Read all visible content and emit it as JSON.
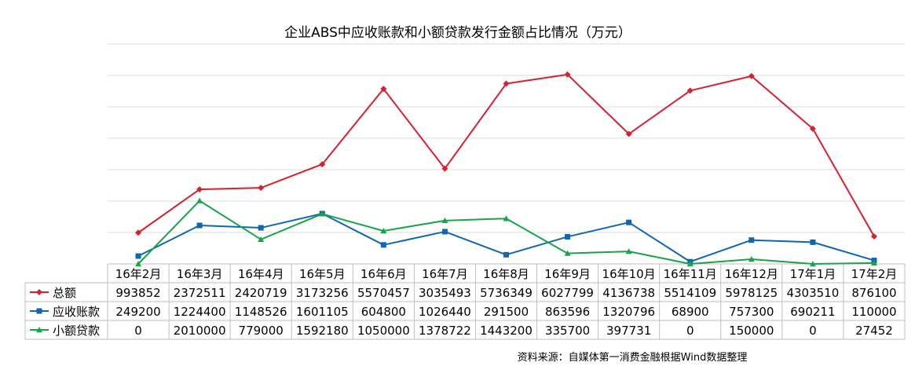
{
  "chart_data": {
    "type": "line",
    "title": "企业ABS中应收账款和小额贷款发行金额占比情况（万元）",
    "categories": [
      "16年2月",
      "16年3月",
      "16年4月",
      "16年5月",
      "16年6月",
      "16年7月",
      "16年8月",
      "16年9月",
      "16年10月",
      "16年11月",
      "16年12月",
      "17年1月",
      "17年2月"
    ],
    "ylim": [
      0,
      7000000
    ],
    "grid": true,
    "legend": "data-table-left",
    "series": [
      {
        "name": "总额",
        "color": "#d9202f",
        "marker": "diamond",
        "values": [
          993852,
          2372511,
          2420719,
          3173256,
          5570457,
          3035493,
          5736349,
          6027799,
          4136738,
          5514109,
          5978125,
          4303510,
          876100
        ]
      },
      {
        "name": "应收账款",
        "color": "#0f66b3",
        "marker": "square",
        "values": [
          249200,
          1224400,
          1148526,
          1601105,
          604800,
          1026440,
          291500,
          863596,
          1320796,
          68900,
          757300,
          690211,
          110000
        ]
      },
      {
        "name": "小额贷款",
        "color": "#1aa44a",
        "marker": "triangle",
        "values": [
          0,
          2010000,
          779000,
          1592180,
          1050000,
          1378722,
          1443200,
          335700,
          397731,
          0,
          150000,
          0,
          27452
        ]
      }
    ]
  },
  "footer": {
    "source": "资料来源：自媒体第一消费金融根据Wind数据整理"
  }
}
